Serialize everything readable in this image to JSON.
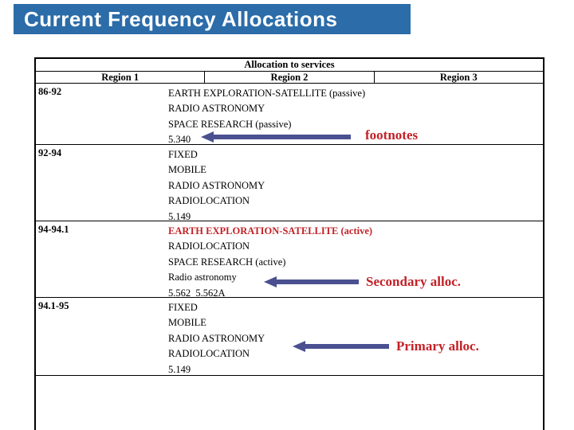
{
  "slide": {
    "title": "Current Frequency Allocations"
  },
  "colors": {
    "title_bar_blue": "#2B6CA9",
    "highlight_red": "#C32127",
    "arrow_blue": "#4A5090"
  },
  "table": {
    "header": "Allocation to services",
    "columns": [
      "Region 1",
      "Region 2",
      "Region 3"
    ],
    "bands": [
      {
        "range": "86-92",
        "entries": [
          {
            "text": "EARTH EXPLORATION-SATELLITE (passive)",
            "style": "primary"
          },
          {
            "text": "RADIO ASTRONOMY",
            "style": "primary"
          },
          {
            "text": "SPACE RESEARCH (passive)",
            "style": "primary"
          },
          {
            "text": "5.340",
            "style": "footnote"
          }
        ]
      },
      {
        "range": "92-94",
        "entries": [
          {
            "text": "FIXED",
            "style": "primary"
          },
          {
            "text": "MOBILE",
            "style": "primary"
          },
          {
            "text": "RADIO ASTRONOMY",
            "style": "primary"
          },
          {
            "text": "RADIOLOCATION",
            "style": "primary"
          },
          {
            "text": "5.149",
            "style": "footnote"
          }
        ]
      },
      {
        "range": "94-94.1",
        "entries": [
          {
            "text": "EARTH EXPLORATION-SATELLITE (active)",
            "style": "primary-highlight"
          },
          {
            "text": "RADIOLOCATION",
            "style": "primary"
          },
          {
            "text": "SPACE RESEARCH (active)",
            "style": "primary"
          },
          {
            "text": "Radio astronomy",
            "style": "secondary"
          },
          {
            "text": "5.562  5.562A",
            "style": "footnote"
          }
        ]
      },
      {
        "range": "94.1-95",
        "entries": [
          {
            "text": "FIXED",
            "style": "primary"
          },
          {
            "text": "MOBILE",
            "style": "primary"
          },
          {
            "text": "RADIO ASTRONOMY",
            "style": "primary"
          },
          {
            "text": "RADIOLOCATION",
            "style": "primary"
          },
          {
            "text": "5.149",
            "style": "footnote"
          }
        ]
      }
    ]
  },
  "annotations": {
    "footnotes": {
      "label": "footnotes"
    },
    "secondary": {
      "label": "Secondary alloc."
    },
    "primary": {
      "label": "Primary alloc."
    }
  }
}
